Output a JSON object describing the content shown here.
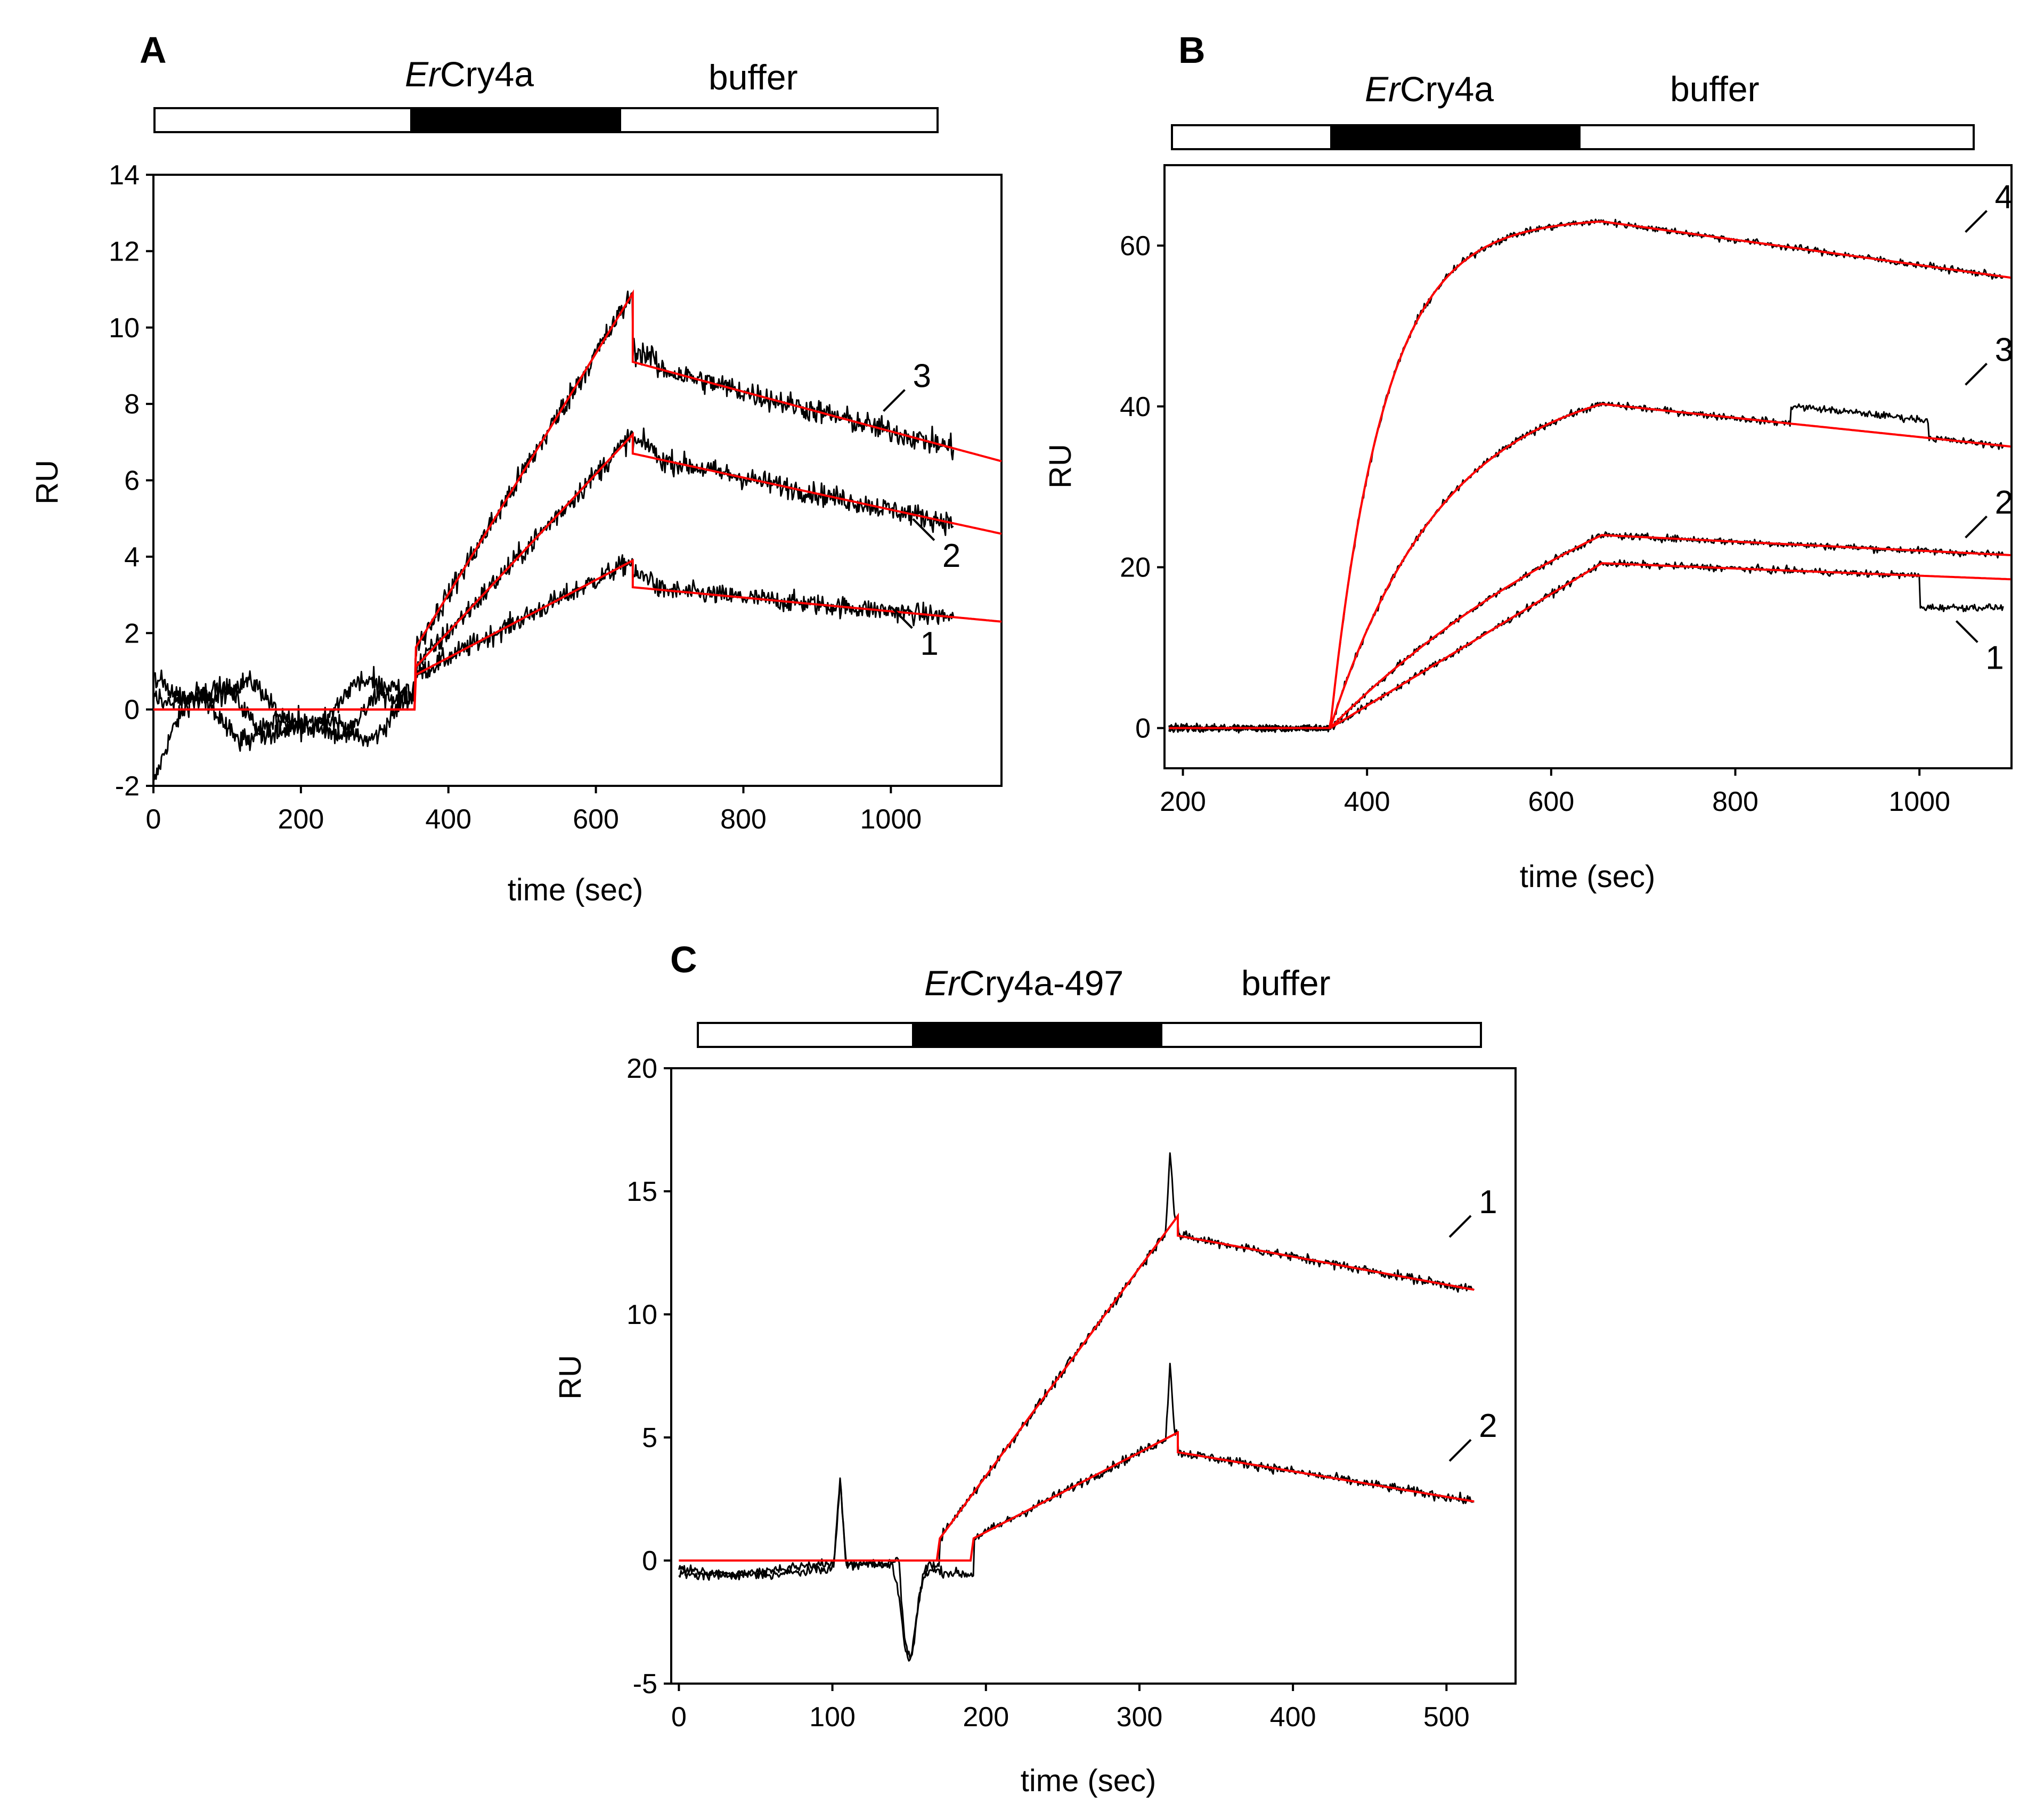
{
  "figure_title": "",
  "panels": [
    {
      "letter": "A",
      "bar_sample_italic": "Er",
      "bar_sample_rest": "Cry4a",
      "bar_buffer": "buffer",
      "xlabel": "time (sec)",
      "ylabel": "RU",
      "curve_labels": [
        "1",
        "2",
        "3"
      ]
    },
    {
      "letter": "B",
      "bar_sample_italic": "Er",
      "bar_sample_rest": "Cry4a",
      "bar_buffer": "buffer",
      "xlabel": "time (sec)",
      "ylabel": "RU",
      "curve_labels": [
        "1",
        "2",
        "3",
        "4"
      ]
    },
    {
      "letter": "C",
      "bar_sample_italic": "Er",
      "bar_sample_rest": "Cry4a-497",
      "bar_buffer": "buffer",
      "xlabel": "time (sec)",
      "ylabel": "RU",
      "curve_labels": [
        "1",
        "2"
      ]
    }
  ],
  "colors": {
    "data": "#000000",
    "fit": "#ff0000",
    "injection_bar": "#000000"
  },
  "chart_data": [
    {
      "panel": "A",
      "type": "line",
      "title": "",
      "xlabel": "time (sec)",
      "ylabel": "RU",
      "xlim": [
        0,
        1150
      ],
      "ylim": [
        -2,
        14
      ],
      "xticks": [
        0,
        200,
        400,
        600,
        800,
        1000
      ],
      "yticks": [
        -2,
        0,
        2,
        4,
        6,
        8,
        10,
        12,
        14
      ],
      "injection": {
        "start": 355,
        "end": 650,
        "label": "ErCry4a",
        "buffer_label": "buffer"
      },
      "series": [
        {
          "name": "1",
          "label_at": [
            1000,
            2.2
          ],
          "fit": {
            "start": 355,
            "end": 650,
            "jump": 0.9,
            "peak": 3.9,
            "drop": 3.2,
            "end_x": 1150,
            "end_y": 2.3
          },
          "noise": 0.28,
          "baseline_wobble": true
        },
        {
          "name": "2",
          "label_at": [
            1030,
            4.5
          ],
          "fit": {
            "start": 355,
            "end": 650,
            "jump": 1.1,
            "peak": 7.2,
            "drop": 6.7,
            "end_x": 1150,
            "end_y": 4.6
          },
          "noise": 0.3,
          "data_end": 1085
        },
        {
          "name": "3",
          "label_at": [
            990,
            8.3
          ],
          "fit": {
            "start": 355,
            "end": 650,
            "jump": 1.6,
            "peak": 10.9,
            "drop": 9.1,
            "end_x": 1150,
            "end_y": 6.5
          },
          "noise": 0.33,
          "data_end": 1085
        }
      ]
    },
    {
      "panel": "B",
      "type": "line",
      "title": "",
      "xlabel": "time (sec)",
      "ylabel": "RU",
      "xlim": [
        180,
        1100
      ],
      "ylim": [
        -5,
        70
      ],
      "xticks": [
        200,
        400,
        600,
        800,
        1000
      ],
      "yticks": [
        0,
        20,
        40,
        60
      ],
      "injection": {
        "start": 360,
        "end": 655,
        "label": "ErCry4a",
        "buffer_label": "buffer"
      },
      "series": [
        {
          "name": "1",
          "label_at": [
            1040,
            11
          ],
          "fit": {
            "start": 360,
            "end": 655,
            "peak": 20.5,
            "kobs": 0.0,
            "linear": true,
            "end_y": 18.5
          },
          "data_step": {
            "at": 1000,
            "to": 15
          }
        },
        {
          "name": "2",
          "label_at": [
            1050,
            26
          ],
          "fit": {
            "start": 360,
            "end": 655,
            "peak": 24,
            "kobs": 0.0025,
            "end_y": 21.5
          }
        },
        {
          "name": "3",
          "label_at": [
            1050,
            45
          ],
          "fit": {
            "start": 360,
            "end": 655,
            "peak": 40.3,
            "kobs": 0.008,
            "end_y": 35
          }
        },
        {
          "name": "4",
          "label_at": [
            1050,
            64
          ],
          "fit": {
            "start": 360,
            "end": 655,
            "peak": 63,
            "kobs": 0.017,
            "end_y": 56
          }
        }
      ]
    },
    {
      "panel": "C",
      "type": "line",
      "title": "",
      "xlabel": "time (sec)",
      "ylabel": "RU",
      "xlim": [
        -5,
        545
      ],
      "ylim": [
        -5,
        20
      ],
      "xticks": [
        0,
        100,
        200,
        300,
        400,
        500
      ],
      "yticks": [
        -5,
        0,
        5,
        10,
        15,
        20
      ],
      "injection": {
        "start": 150,
        "end": 315,
        "label": "ErCry4a-497",
        "buffer_label": "buffer"
      },
      "series": [
        {
          "name": "1",
          "label_at": [
            502,
            13.9
          ],
          "fit": {
            "start": 170,
            "end": 325,
            "jump": 0.9,
            "peak": 14.0,
            "drop": 13.2,
            "end_x": 518,
            "end_y": 11.0
          }
        },
        {
          "name": "2",
          "label_at": [
            502,
            4.8
          ],
          "fit": {
            "start": 192,
            "end": 325,
            "jump": 0.9,
            "peak": 5.2,
            "drop": 4.4,
            "end_x": 518,
            "end_y": 2.4
          }
        }
      ]
    }
  ]
}
